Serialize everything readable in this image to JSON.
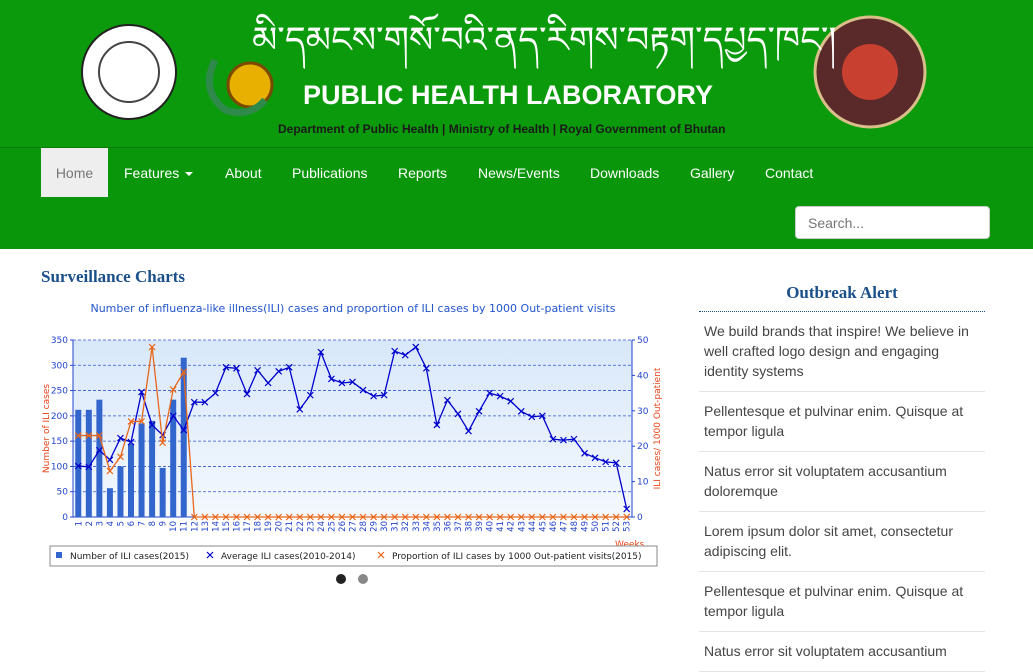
{
  "header": {
    "tibetan": "མི་དམངས་གསོ་བའི་ནད་རིགས་བརྟག་དཔྱད་ཁང་།",
    "title": "PUBLIC HEALTH LABORATORY",
    "subtitle": "Department of Public Health | Ministry of Health | Royal Government of Bhutan"
  },
  "nav": {
    "items": [
      "Home",
      "Features",
      "About",
      "Publications",
      "Reports",
      "News/Events",
      "Downloads",
      "Gallery",
      "Contact"
    ],
    "search_placeholder": "Search..."
  },
  "section_title": "Surveillance Charts",
  "chart_data": {
    "type": "bar",
    "title": "Number of influenza-like illness(ILI) cases and proportion of ILI cases by 1000 Out-patient visits",
    "x_label": "Weeks",
    "y_label": "Number of ILI cases",
    "y2_label": "ILI cases/ 1000 Out-patient",
    "categories": [
      "1",
      "2",
      "3",
      "4",
      "5",
      "6",
      "7",
      "8",
      "9",
      "10",
      "11",
      "12",
      "13",
      "14",
      "15",
      "16",
      "17",
      "18",
      "19",
      "20",
      "21",
      "22",
      "23",
      "24",
      "25",
      "26",
      "27",
      "28",
      "29",
      "30",
      "31",
      "32",
      "33",
      "34",
      "35",
      "36",
      "37",
      "38",
      "39",
      "40",
      "41",
      "42",
      "43",
      "44",
      "45",
      "46",
      "47",
      "48",
      "49",
      "50",
      "51",
      "52",
      "53"
    ],
    "series": [
      {
        "name": "Number of ILI cases(2015)",
        "type": "bar",
        "color": "#3366cc",
        "values": [
          212,
          212,
          232,
          57,
          100,
          145,
          185,
          190,
          97,
          232,
          315,
          null,
          null,
          null,
          null,
          null,
          null,
          null,
          null,
          null,
          null,
          null,
          null,
          null,
          null,
          null,
          null,
          null,
          null,
          null,
          null,
          null,
          null,
          null,
          null,
          null,
          null,
          null,
          null,
          null,
          null,
          null,
          null,
          null,
          null,
          null,
          null,
          null,
          null,
          null,
          null,
          null,
          null
        ]
      },
      {
        "name": "Average ILI cases(2010-2014)",
        "type": "line",
        "color": "#0000cc",
        "values": [
          101,
          99,
          132,
          113,
          156,
          148,
          247,
          182,
          162,
          200,
          172,
          227,
          227,
          245,
          296,
          294,
          243,
          290,
          265,
          288,
          296,
          213,
          241,
          326,
          273,
          265,
          267,
          251,
          239,
          241,
          328,
          320,
          336,
          294,
          182,
          231,
          204,
          170,
          209,
          245,
          239,
          229,
          209,
          198,
          200,
          154,
          152,
          154,
          126,
          117,
          109,
          107,
          16
        ]
      },
      {
        "name": "Proportion of ILI cases by 1000 Out-patient visits(2015)",
        "type": "line",
        "axis": "y2",
        "color": "#e8661a",
        "values": [
          23,
          23,
          23,
          13,
          17,
          27,
          27,
          48,
          21,
          36,
          41,
          0,
          0,
          0,
          0,
          0,
          0,
          0,
          0,
          0,
          0,
          0,
          0,
          0,
          0,
          0,
          0,
          0,
          0,
          0,
          0,
          0,
          0,
          0,
          0,
          0,
          0,
          0,
          0,
          0,
          0,
          0,
          0,
          0,
          0,
          0,
          0,
          0,
          0,
          0,
          0,
          0,
          0
        ]
      }
    ],
    "ylim": [
      0,
      350
    ],
    "yticks": [
      0,
      50,
      100,
      150,
      200,
      250,
      300,
      350
    ],
    "y2lim": [
      0,
      50
    ],
    "y2ticks": [
      0,
      10,
      20,
      30,
      40,
      50
    ],
    "grid": true,
    "legend": "bottom"
  },
  "sidebar": {
    "title": "Outbreak Alert",
    "items": [
      "We build brands that inspire! We believe in well crafted logo design and engaging identity systems",
      "Pellentesque et pulvinar enim. Quisque at tempor ligula",
      "Natus error sit voluptatem accusantium doloremque",
      "Lorem ipsum dolor sit amet, consectetur adipiscing elit.",
      "Pellentesque et pulvinar enim. Quisque at tempor ligula",
      "Natus error sit voluptatem accusantium"
    ]
  }
}
